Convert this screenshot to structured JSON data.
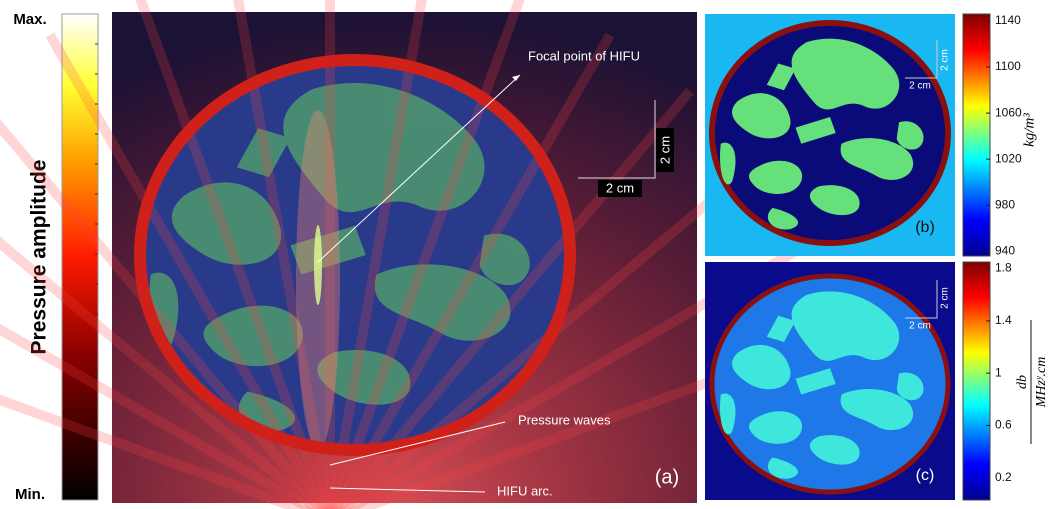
{
  "left_bar": {
    "max": "Max.",
    "min": "Min.",
    "title": "Pressure amplitude"
  },
  "panel_a": {
    "focal": "Focal point of HIFU",
    "scale_v": "2 cm",
    "scale_h": "2 cm",
    "waves": "Pressure waves",
    "arc": "HIFU  arc.",
    "tag": "(a)"
  },
  "panel_b": {
    "scale_v": "2 cm",
    "scale_h": "2 cm",
    "tag": "(b)",
    "colorbar": {
      "label": "kg/m³",
      "lim": [
        936,
        1146
      ],
      "ticks": [
        940,
        980,
        1020,
        1060,
        1100,
        1140
      ]
    }
  },
  "panel_c": {
    "scale_v": "2 cm",
    "scale_h": "2 cm",
    "tag": "(c)",
    "colorbar": {
      "label_num": "db",
      "label_den": "MHzʸ.cm",
      "lim": [
        0.03,
        1.85
      ],
      "ticks": [
        0.2,
        0.6,
        1,
        1.4,
        1.8
      ]
    }
  }
}
